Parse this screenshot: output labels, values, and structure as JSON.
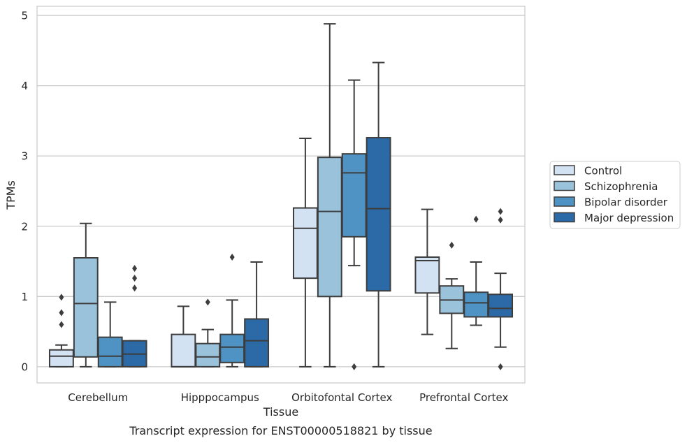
{
  "chart_data": {
    "type": "box",
    "caption": "Transcript expression for ENST00000518821 by tissue",
    "xlabel": "Tissue",
    "ylabel": "TPMs",
    "ylim": [
      -0.23,
      5.13
    ],
    "yticks": [
      0,
      1,
      2,
      3,
      4,
      5
    ],
    "grid": "horizontal",
    "legend_position": "right",
    "categories": [
      "Cerebellum",
      "Hipppocampus",
      "Orbitofontal Cortex",
      "Prefrontal Cortex"
    ],
    "series": [
      {
        "name": "Control",
        "color": "#d3e2f2",
        "boxes": [
          {
            "min": 0.0,
            "q1": 0.0,
            "median": 0.15,
            "q3": 0.24,
            "max": 0.31,
            "outliers": [
              0.6,
              0.77,
              0.99
            ]
          },
          {
            "min": 0.0,
            "q1": 0.0,
            "median": 0.0,
            "q3": 0.46,
            "max": 0.86,
            "outliers": []
          },
          {
            "min": 0.0,
            "q1": 1.26,
            "median": 1.97,
            "q3": 2.26,
            "max": 3.25,
            "outliers": []
          },
          {
            "min": 0.46,
            "q1": 1.05,
            "median": 1.51,
            "q3": 1.56,
            "max": 2.24,
            "outliers": []
          }
        ]
      },
      {
        "name": "Schizophrenia",
        "color": "#9ac2db",
        "boxes": [
          {
            "min": 0.0,
            "q1": 0.14,
            "median": 0.9,
            "q3": 1.55,
            "max": 2.04,
            "outliers": []
          },
          {
            "min": 0.0,
            "q1": 0.0,
            "median": 0.14,
            "q3": 0.33,
            "max": 0.53,
            "outliers": [
              0.92
            ]
          },
          {
            "min": 0.0,
            "q1": 1.0,
            "median": 2.21,
            "q3": 2.98,
            "max": 4.88,
            "outliers": []
          },
          {
            "min": 0.26,
            "q1": 0.76,
            "median": 0.95,
            "q3": 1.15,
            "max": 1.25,
            "outliers": [
              1.73
            ]
          }
        ]
      },
      {
        "name": "Bipolar disorder",
        "color": "#4e93c3",
        "boxes": [
          {
            "min": 0.0,
            "q1": 0.0,
            "median": 0.15,
            "q3": 0.42,
            "max": 0.92,
            "outliers": []
          },
          {
            "min": 0.0,
            "q1": 0.06,
            "median": 0.28,
            "q3": 0.46,
            "max": 0.95,
            "outliers": [
              1.56
            ]
          },
          {
            "min": 1.44,
            "q1": 1.85,
            "median": 2.76,
            "q3": 3.03,
            "max": 4.08,
            "outliers": [
              0.0
            ]
          },
          {
            "min": 0.59,
            "q1": 0.71,
            "median": 0.91,
            "q3": 1.06,
            "max": 1.49,
            "outliers": [
              2.1
            ]
          }
        ]
      },
      {
        "name": "Major depression",
        "color": "#2b6aa6",
        "boxes": [
          {
            "min": 0.0,
            "q1": 0.0,
            "median": 0.18,
            "q3": 0.37,
            "max": 0.37,
            "outliers": [
              1.12,
              1.26,
              1.4
            ]
          },
          {
            "min": 0.0,
            "q1": 0.0,
            "median": 0.37,
            "q3": 0.68,
            "max": 1.49,
            "outliers": []
          },
          {
            "min": 0.0,
            "q1": 1.08,
            "median": 2.25,
            "q3": 3.26,
            "max": 4.33,
            "outliers": []
          },
          {
            "min": 0.28,
            "q1": 0.71,
            "median": 0.83,
            "q3": 1.03,
            "max": 1.33,
            "outliers": [
              0.0,
              2.09,
              2.21
            ]
          }
        ]
      }
    ]
  },
  "colors": {
    "gridline": "#cccccc",
    "frame": "#cccccc",
    "box_edge": "#3d3d3d",
    "text": "#262626"
  }
}
